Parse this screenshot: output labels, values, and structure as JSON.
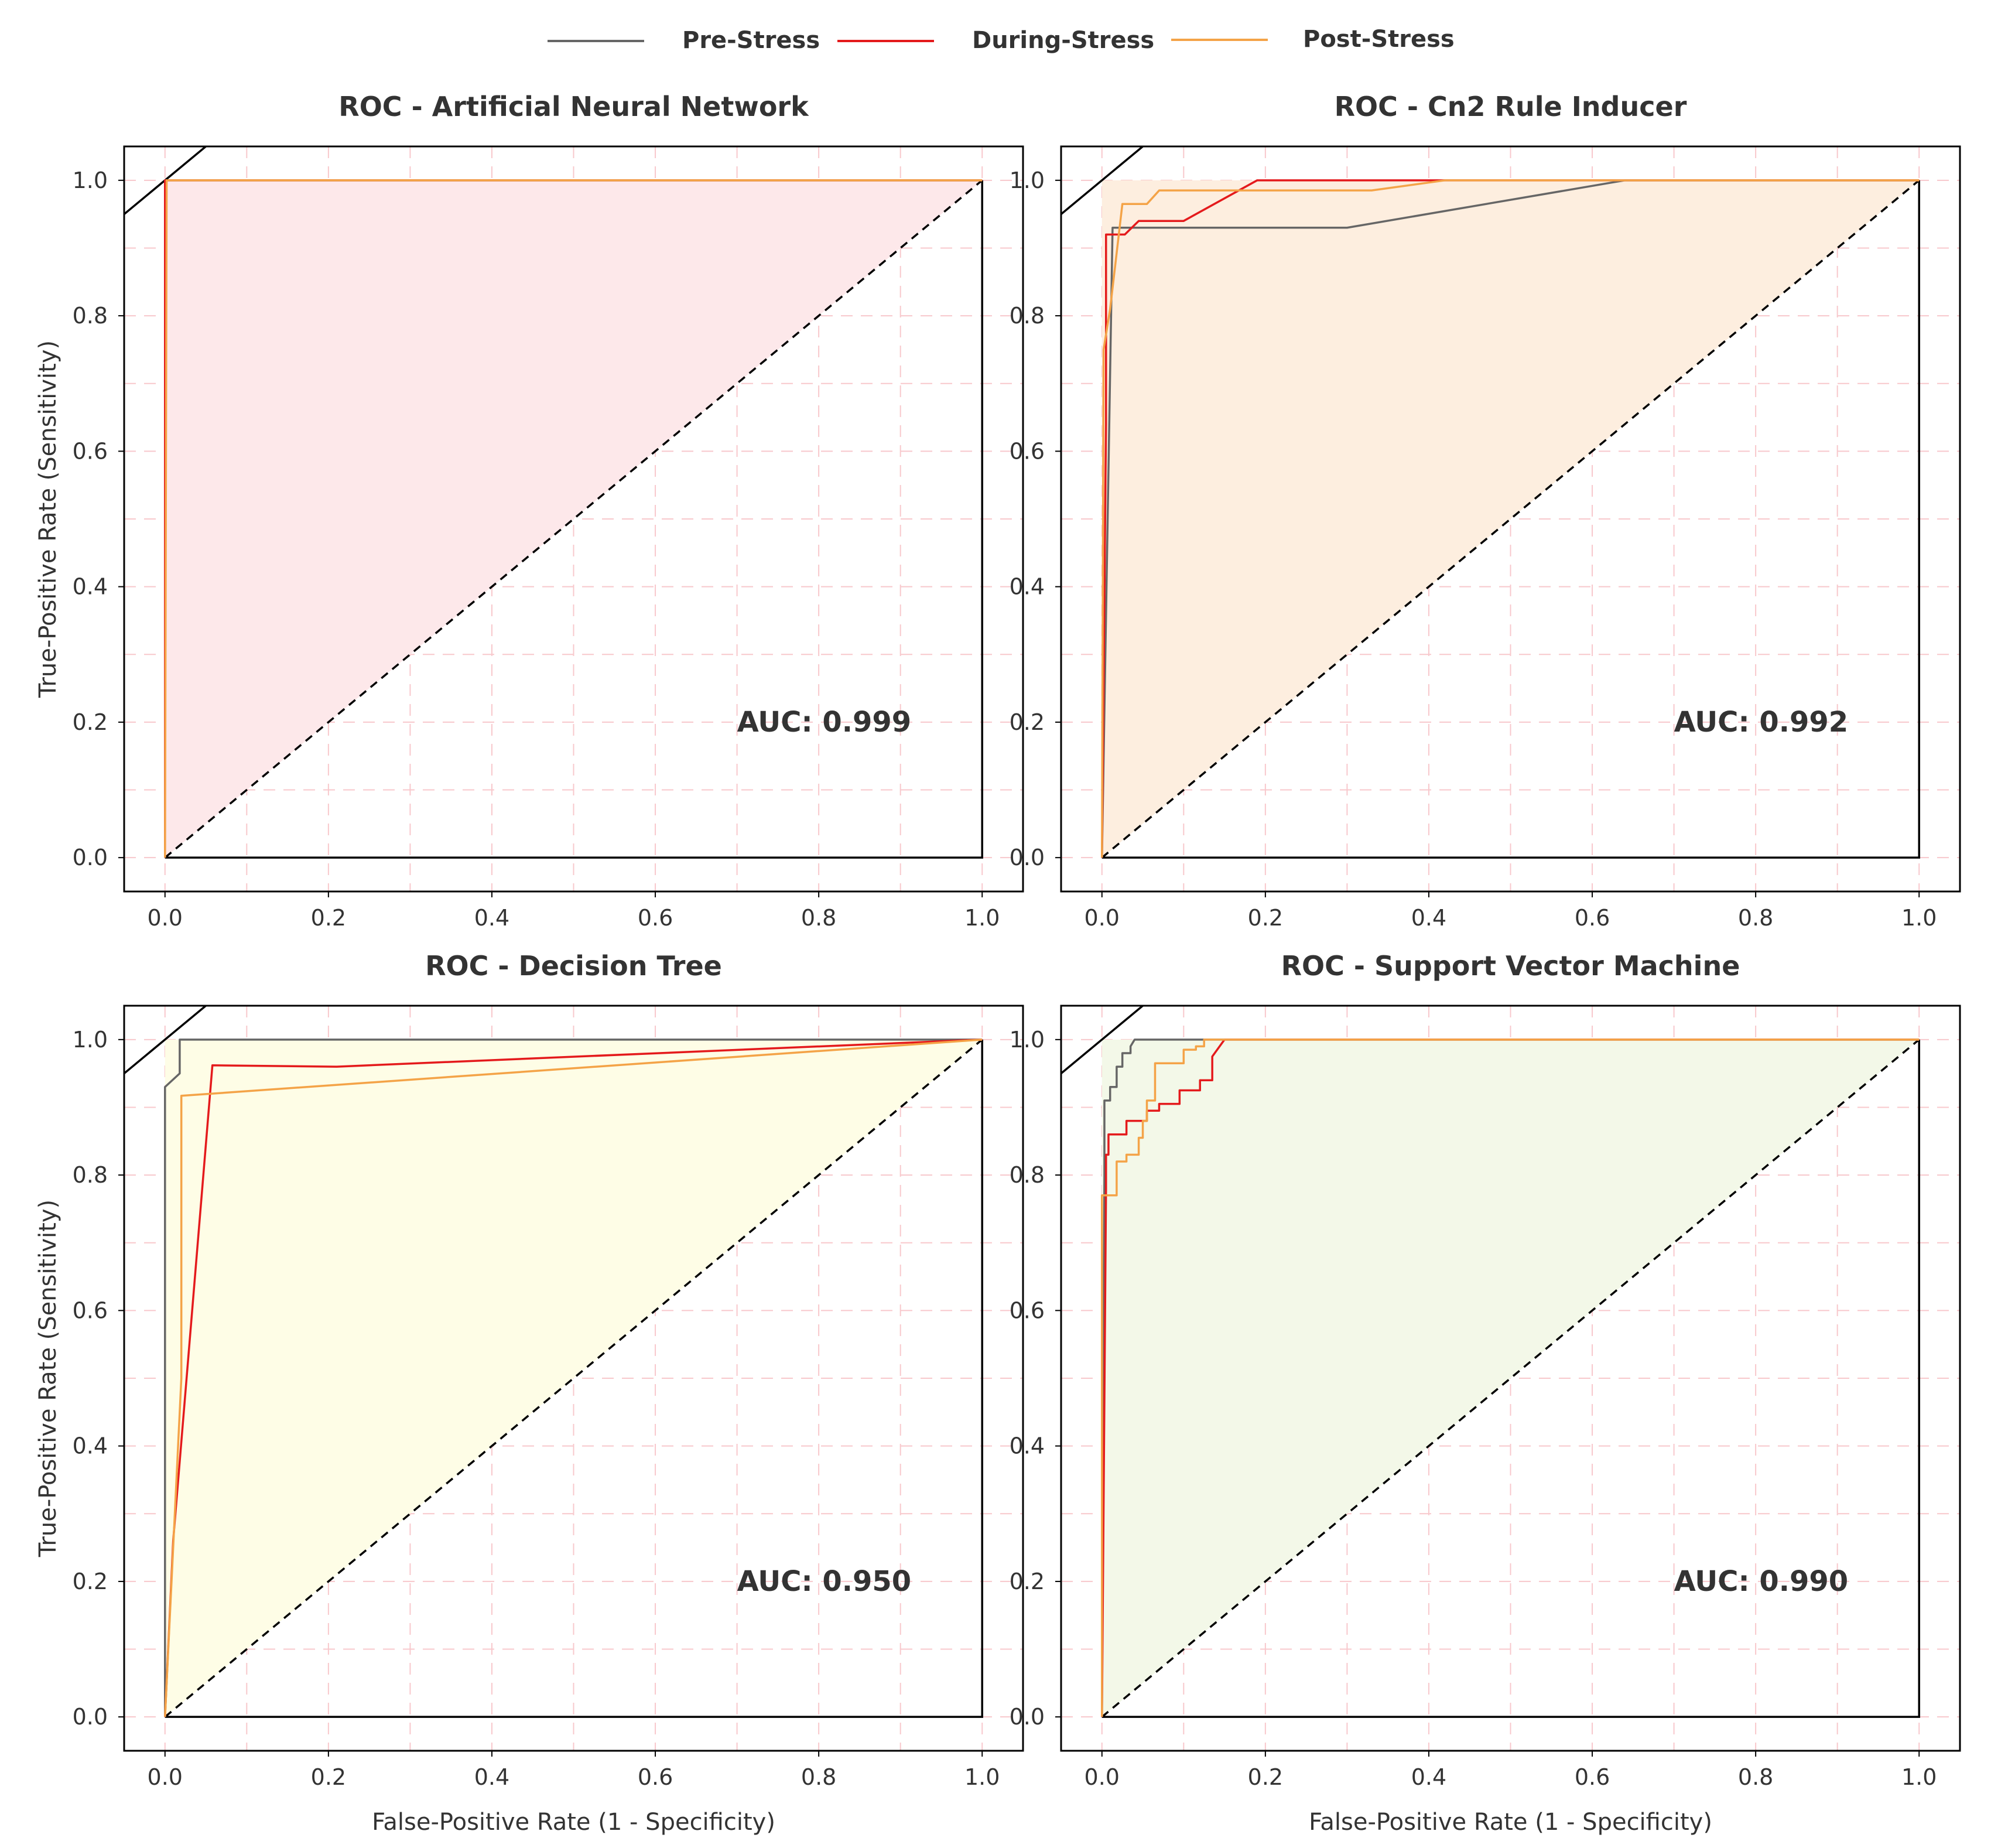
{
  "legend": {
    "placement": "top-center",
    "entries": [
      {
        "name": "Pre-Stress",
        "color": "#666666"
      },
      {
        "name": "During-Stress",
        "color": "#e41a1c"
      },
      {
        "name": "Post-Stress",
        "color": "#f4a347"
      }
    ]
  },
  "chart_data": [
    {
      "type": "line",
      "title": "ROC - Artificial Neural Network",
      "xlabel": "",
      "ylabel": "True-Positive Rate (Sensitivity)",
      "xlim": [
        -0.05,
        1.05
      ],
      "ylim": [
        -0.05,
        1.05
      ],
      "xticks": [
        0.0,
        0.2,
        0.4,
        0.6,
        0.8,
        1.0
      ],
      "yticks": [
        0.0,
        0.2,
        0.4,
        0.6,
        0.8,
        1.0
      ],
      "grid": true,
      "fill_color": "#fde8ea",
      "annotation": "AUC: 0.999",
      "series": [
        {
          "name": "Pre-Stress",
          "x": [
            0,
            0,
            1
          ],
          "y": [
            0,
            1,
            1
          ]
        },
        {
          "name": "During-Stress",
          "x": [
            0,
            0,
            1
          ],
          "y": [
            0,
            1,
            1
          ]
        },
        {
          "name": "Post-Stress",
          "x": [
            0,
            0.002,
            1
          ],
          "y": [
            0,
            1,
            1
          ]
        }
      ]
    },
    {
      "type": "line",
      "title": "ROC - Cn2 Rule Inducer",
      "xlabel": "",
      "ylabel": "",
      "xlim": [
        -0.05,
        1.05
      ],
      "ylim": [
        -0.05,
        1.05
      ],
      "xticks": [
        0.0,
        0.2,
        0.4,
        0.6,
        0.8,
        1.0
      ],
      "yticks": [
        0.0,
        0.2,
        0.4,
        0.6,
        0.8,
        1.0
      ],
      "grid": true,
      "fill_color": "#fdeedf",
      "annotation": "AUC: 0.992",
      "series": [
        {
          "name": "Pre-Stress",
          "x": [
            0,
            0.013,
            0.3,
            0.64,
            1
          ],
          "y": [
            0,
            0.93,
            0.93,
            1,
            1
          ]
        },
        {
          "name": "During-Stress",
          "x": [
            0,
            0.005,
            0.005,
            0.028,
            0.045,
            0.1,
            0.19,
            0.4,
            1
          ],
          "y": [
            0,
            0.64,
            0.92,
            0.92,
            0.94,
            0.94,
            1,
            1,
            1
          ]
        },
        {
          "name": "Post-Stress",
          "x": [
            0,
            0.002,
            0.01,
            0.025,
            0.055,
            0.07,
            0.33,
            0.42,
            1
          ],
          "y": [
            0,
            0.75,
            0.81,
            0.965,
            0.965,
            0.985,
            0.985,
            1,
            1
          ]
        }
      ]
    },
    {
      "type": "line",
      "title": "ROC - Decision Tree",
      "xlabel": "False-Positive Rate (1 - Specificity)",
      "ylabel": "True-Positive Rate (Sensitivity)",
      "xlim": [
        -0.05,
        1.05
      ],
      "ylim": [
        -0.05,
        1.05
      ],
      "xticks": [
        0.0,
        0.2,
        0.4,
        0.6,
        0.8,
        1.0
      ],
      "yticks": [
        0.0,
        0.2,
        0.4,
        0.6,
        0.8,
        1.0
      ],
      "grid": true,
      "fill_color": "#fefde6",
      "annotation": "AUC: 0.950",
      "series": [
        {
          "name": "Pre-Stress",
          "x": [
            0,
            0,
            0.018,
            0.018,
            1
          ],
          "y": [
            0,
            0.93,
            0.95,
            1,
            1
          ]
        },
        {
          "name": "During-Stress",
          "x": [
            0,
            0.01,
            0.058,
            0.21,
            1
          ],
          "y": [
            0,
            0.26,
            0.962,
            0.96,
            1
          ]
        },
        {
          "name": "Post-Stress",
          "x": [
            0,
            0.02,
            0.02,
            1
          ],
          "y": [
            0,
            0.5,
            0.917,
            1
          ]
        }
      ]
    },
    {
      "type": "line",
      "title": "ROC - Support Vector Machine",
      "xlabel": "False-Positive Rate (1 - Specificity)",
      "ylabel": "",
      "xlim": [
        -0.05,
        1.05
      ],
      "ylim": [
        -0.05,
        1.05
      ],
      "xticks": [
        0.0,
        0.2,
        0.4,
        0.6,
        0.8,
        1.0
      ],
      "yticks": [
        0.0,
        0.2,
        0.4,
        0.6,
        0.8,
        1.0
      ],
      "grid": true,
      "fill_color": "#f3f8e8",
      "annotation": "AUC: 0.990",
      "series": [
        {
          "name": "Pre-Stress",
          "x": [
            0,
            0.003,
            0.003,
            0.01,
            0.01,
            0.018,
            0.018,
            0.025,
            0.025,
            0.035,
            0.035,
            0.04,
            1
          ],
          "y": [
            0,
            0.8,
            0.91,
            0.91,
            0.93,
            0.93,
            0.96,
            0.96,
            0.98,
            0.98,
            0.99,
            1,
            1
          ]
        },
        {
          "name": "During-Stress",
          "x": [
            0,
            0.005,
            0.005,
            0.008,
            0.008,
            0.03,
            0.03,
            0.055,
            0.055,
            0.07,
            0.07,
            0.095,
            0.095,
            0.12,
            0.12,
            0.135,
            0.135,
            0.15,
            1
          ],
          "y": [
            0,
            0.78,
            0.83,
            0.83,
            0.86,
            0.86,
            0.88,
            0.88,
            0.895,
            0.895,
            0.905,
            0.905,
            0.925,
            0.925,
            0.94,
            0.94,
            0.975,
            1,
            1
          ]
        },
        {
          "name": "Post-Stress",
          "x": [
            0,
            0.0,
            0.005,
            0.005,
            0.018,
            0.018,
            0.03,
            0.03,
            0.045,
            0.045,
            0.05,
            0.05,
            0.055,
            0.055,
            0.065,
            0.065,
            0.1,
            0.1,
            0.115,
            0.115,
            0.125,
            0.125,
            1
          ],
          "y": [
            0,
            0.77,
            0.77,
            0.77,
            0.77,
            0.82,
            0.82,
            0.83,
            0.83,
            0.855,
            0.855,
            0.88,
            0.88,
            0.91,
            0.91,
            0.965,
            0.965,
            0.985,
            0.985,
            0.99,
            0.99,
            1,
            1
          ]
        }
      ]
    }
  ]
}
